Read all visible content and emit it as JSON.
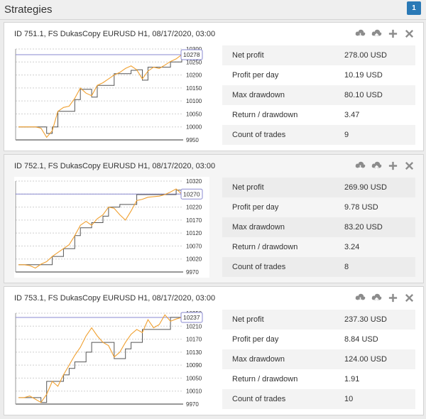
{
  "header": {
    "title": "Strategies",
    "badge": "1"
  },
  "strategies": [
    {
      "title": "ID 751.1, FS DukasCopy EURUSD H1, 08/17/2020, 03:00",
      "stats": [
        {
          "label": "Net profit",
          "value": "278.00 USD"
        },
        {
          "label": "Profit per day",
          "value": "10.19 USD"
        },
        {
          "label": "Max drawdown",
          "value": "80.10 USD"
        },
        {
          "label": "Return / drawdown",
          "value": "3.47"
        },
        {
          "label": "Count of trades",
          "value": "9"
        }
      ]
    },
    {
      "title": "ID 752.1, FS DukasCopy EURUSD H1, 08/17/2020, 03:00",
      "stats": [
        {
          "label": "Net profit",
          "value": "269.90 USD"
        },
        {
          "label": "Profit per day",
          "value": "9.78 USD"
        },
        {
          "label": "Max drawdown",
          "value": "83.20 USD"
        },
        {
          "label": "Return / drawdown",
          "value": "3.24"
        },
        {
          "label": "Count of trades",
          "value": "8"
        }
      ]
    },
    {
      "title": "ID 753.1, FS DukasCopy EURUSD H1, 08/17/2020, 03:00",
      "stats": [
        {
          "label": "Net profit",
          "value": "237.30 USD"
        },
        {
          "label": "Profit per day",
          "value": "8.84 USD"
        },
        {
          "label": "Max drawdown",
          "value": "124.00 USD"
        },
        {
          "label": "Return / drawdown",
          "value": "1.91"
        },
        {
          "label": "Count of trades",
          "value": "10"
        }
      ]
    }
  ],
  "icons": [
    "cloud-download-icon",
    "cloud-upload-icon",
    "plus-icon",
    "close-icon"
  ],
  "colors": {
    "badge": "#2a79b6",
    "balance_line": "#555555",
    "equity_line": "#f0a030",
    "last_value_line": "#8a8ad0"
  },
  "chart_data": [
    {
      "type": "line",
      "yticks": [
        9950,
        10000,
        10050,
        10100,
        10150,
        10200,
        10250,
        10300
      ],
      "ylim": [
        9950,
        10300
      ],
      "last_value": 10278,
      "series": [
        {
          "values": [
            10000,
            10000,
            10000,
            10000,
            10000,
            9975,
            10000,
            10060,
            10060,
            10060,
            10105,
            10145,
            10145,
            10115,
            10160,
            10160,
            10160,
            10205,
            10205,
            10205,
            10218,
            10220,
            10180,
            10230,
            10230,
            10230,
            10230,
            10250,
            10250,
            10278
          ]
        },
        {
          "values": [
            10000,
            10000,
            10000,
            10000,
            9995,
            9960,
            9985,
            10060,
            10075,
            10080,
            10110,
            10150,
            10130,
            10120,
            10160,
            10170,
            10185,
            10200,
            10210,
            10225,
            10235,
            10220,
            10185,
            10215,
            10230,
            10225,
            10238,
            10252,
            10262,
            10278
          ]
        }
      ]
    },
    {
      "type": "line",
      "yticks": [
        9970,
        10020,
        10070,
        10120,
        10170,
        10220,
        10270,
        10320
      ],
      "ylim": [
        9970,
        10320
      ],
      "last_value": 10270,
      "series": [
        {
          "values": [
            9998,
            9998,
            9998,
            9998,
            9998,
            9998,
            10030,
            10030,
            10060,
            10060,
            10110,
            10140,
            10140,
            10160,
            10160,
            10185,
            10220,
            10220,
            10230,
            10230,
            10230,
            10268,
            10268,
            10268,
            10268,
            10268,
            10268,
            10268,
            10285,
            10270
          ]
        },
        {
          "values": [
            9998,
            9998,
            9995,
            9985,
            10000,
            10010,
            10030,
            10045,
            10060,
            10075,
            10110,
            10150,
            10165,
            10150,
            10175,
            10190,
            10220,
            10215,
            10190,
            10170,
            10205,
            10245,
            10250,
            10258,
            10260,
            10262,
            10268,
            10278,
            10290,
            10270
          ]
        }
      ]
    },
    {
      "type": "line",
      "yticks": [
        9970,
        10010,
        10050,
        10090,
        10130,
        10170,
        10210,
        10250
      ],
      "ylim": [
        9970,
        10250
      ],
      "last_value": 10237,
      "series": [
        {
          "values": [
            9990,
            9990,
            9990,
            9990,
            9975,
            10040,
            10040,
            10040,
            10060,
            10080,
            10100,
            10100,
            10130,
            10160,
            10160,
            10160,
            10160,
            10110,
            10110,
            10140,
            10160,
            10160,
            10200,
            10200,
            10200,
            10200,
            10200,
            10237,
            10237,
            10237
          ]
        },
        {
          "values": [
            9990,
            9990,
            9995,
            9985,
            9975,
            10000,
            10040,
            10025,
            10060,
            10090,
            10120,
            10145,
            10180,
            10205,
            10180,
            10160,
            10150,
            10115,
            10130,
            10160,
            10185,
            10200,
            10190,
            10230,
            10205,
            10215,
            10245,
            10225,
            10232,
            10237
          ]
        }
      ]
    }
  ]
}
